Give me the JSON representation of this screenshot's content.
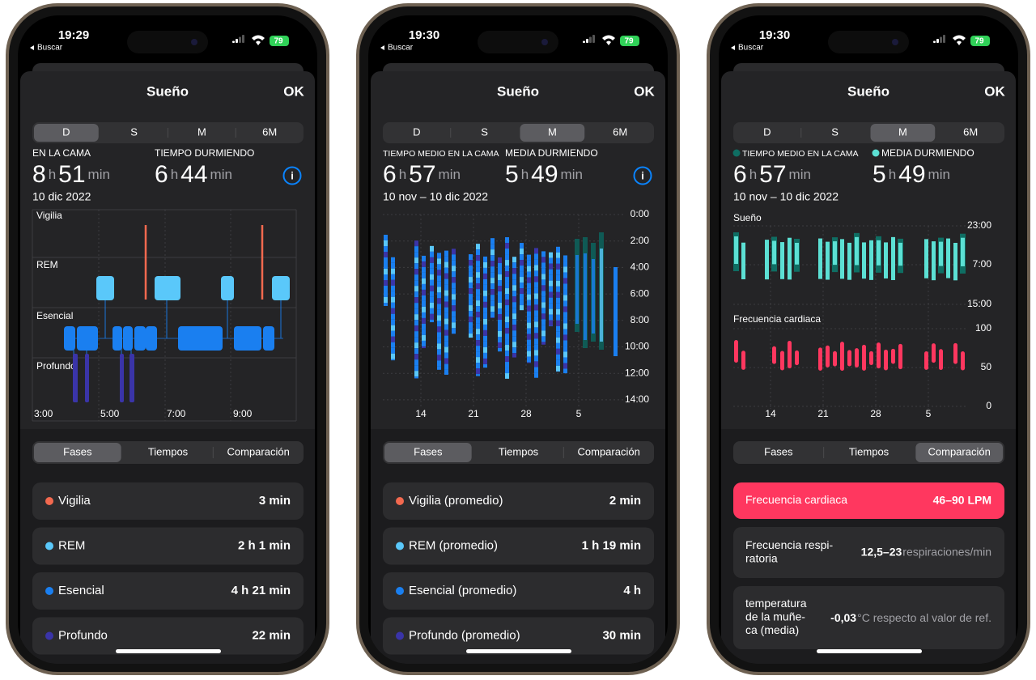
{
  "phones": [
    {
      "status": {
        "time": "19:29",
        "back": "Buscar",
        "battery": "79"
      },
      "header": {
        "title": "Sueño",
        "done": "OK"
      },
      "periods": {
        "options": [
          "D",
          "S",
          "M",
          "6M"
        ],
        "selected": 0
      },
      "stats": [
        {
          "label": "EN LA CAMA",
          "parts": [
            "8",
            "h",
            "51",
            "min"
          ]
        },
        {
          "label": "TIEMPO DURMIENDO",
          "parts": [
            "6",
            "h",
            "44",
            "min"
          ]
        }
      ],
      "date": "10 dic 2022",
      "chart": {
        "stages": [
          "Vigilia",
          "REM",
          "Esencial",
          "Profundo"
        ],
        "x_labels": [
          "3:00",
          "5:00",
          "7:00",
          "9:00"
        ]
      },
      "tabs": {
        "options": [
          "Fases",
          "Tiempos",
          "Comparación"
        ],
        "selected": 0
      },
      "rows": [
        {
          "label": "Vigilia",
          "value": "3 min",
          "color": "#f2694f"
        },
        {
          "label": "REM",
          "value": "2 h 1 min",
          "color": "#5ac8fa"
        },
        {
          "label": "Esencial",
          "value": "4 h 21 min",
          "color": "#1a7ff0"
        },
        {
          "label": "Profundo",
          "value": "22 min",
          "color": "#3a34a8"
        }
      ]
    },
    {
      "status": {
        "time": "19:30",
        "back": "Buscar",
        "battery": "79"
      },
      "header": {
        "title": "Sueño",
        "done": "OK"
      },
      "periods": {
        "options": [
          "D",
          "S",
          "M",
          "6M"
        ],
        "selected": 2
      },
      "stats": [
        {
          "label": "TIEMPO MEDIO EN LA CAMA",
          "parts": [
            "6",
            "h",
            "57",
            "min"
          ]
        },
        {
          "label": "MEDIA DURMIENDO",
          "parts": [
            "5",
            "h",
            "49",
            "min"
          ]
        }
      ],
      "date": "10 nov – 10 dic 2022",
      "chart": {
        "y_labels": [
          "0:00",
          "2:00",
          "4:00",
          "6:00",
          "8:00",
          "10:00",
          "12:00",
          "14:00"
        ],
        "x_labels": [
          "14",
          "21",
          "28",
          "5"
        ]
      },
      "tabs": {
        "options": [
          "Fases",
          "Tiempos",
          "Comparación"
        ],
        "selected": 0
      },
      "rows": [
        {
          "label": "Vigilia (promedio)",
          "value": "2 min",
          "color": "#f2694f"
        },
        {
          "label": "REM (promedio)",
          "value": "1 h 19 min",
          "color": "#5ac8fa"
        },
        {
          "label": "Esencial (promedio)",
          "value": "4 h",
          "color": "#1a7ff0"
        },
        {
          "label": "Profundo (promedio)",
          "value": "30 min",
          "color": "#3a34a8"
        }
      ]
    },
    {
      "status": {
        "time": "19:30",
        "back": "Buscar",
        "battery": "79"
      },
      "header": {
        "title": "Sueño",
        "done": "OK"
      },
      "periods": {
        "options": [
          "D",
          "S",
          "M",
          "6M"
        ],
        "selected": 2
      },
      "stats": [
        {
          "label": "TIEMPO MEDIO EN LA CAMA",
          "parts": [
            "6",
            "h",
            "57",
            "min"
          ],
          "color": "#0f6e63"
        },
        {
          "label": "MEDIA DURMIENDO",
          "parts": [
            "5",
            "h",
            "49",
            "min"
          ],
          "color": "#5ce0d4"
        }
      ],
      "date": "10 nov – 10 dic 2022",
      "chart": {
        "sections": [
          {
            "title": "Sueño",
            "y_labels": [
              "23:00",
              "7:00",
              "15:00"
            ]
          },
          {
            "title": "Frecuencia cardiaca",
            "y_labels": [
              "100",
              "50",
              "0"
            ],
            "color": "#ff375f"
          }
        ],
        "x_labels": [
          "14",
          "21",
          "28",
          "5"
        ]
      },
      "tabs": {
        "options": [
          "Fases",
          "Tiempos",
          "Comparación"
        ],
        "selected": 2
      },
      "rows": [
        {
          "label": [
            "Frecuencia cardiaca"
          ],
          "value": "46–90 LPM",
          "highlight": "#ff375f"
        },
        {
          "label": [
            "Frecuencia respi-",
            "ratoria"
          ],
          "value": "12,5–23",
          "unit": "respiraciones/min"
        },
        {
          "label": [
            "temperatura",
            "de la muñe-",
            "ca (media)"
          ],
          "value": "-0,03",
          "unit": "°C respecto al valor de ref."
        }
      ]
    }
  ]
}
